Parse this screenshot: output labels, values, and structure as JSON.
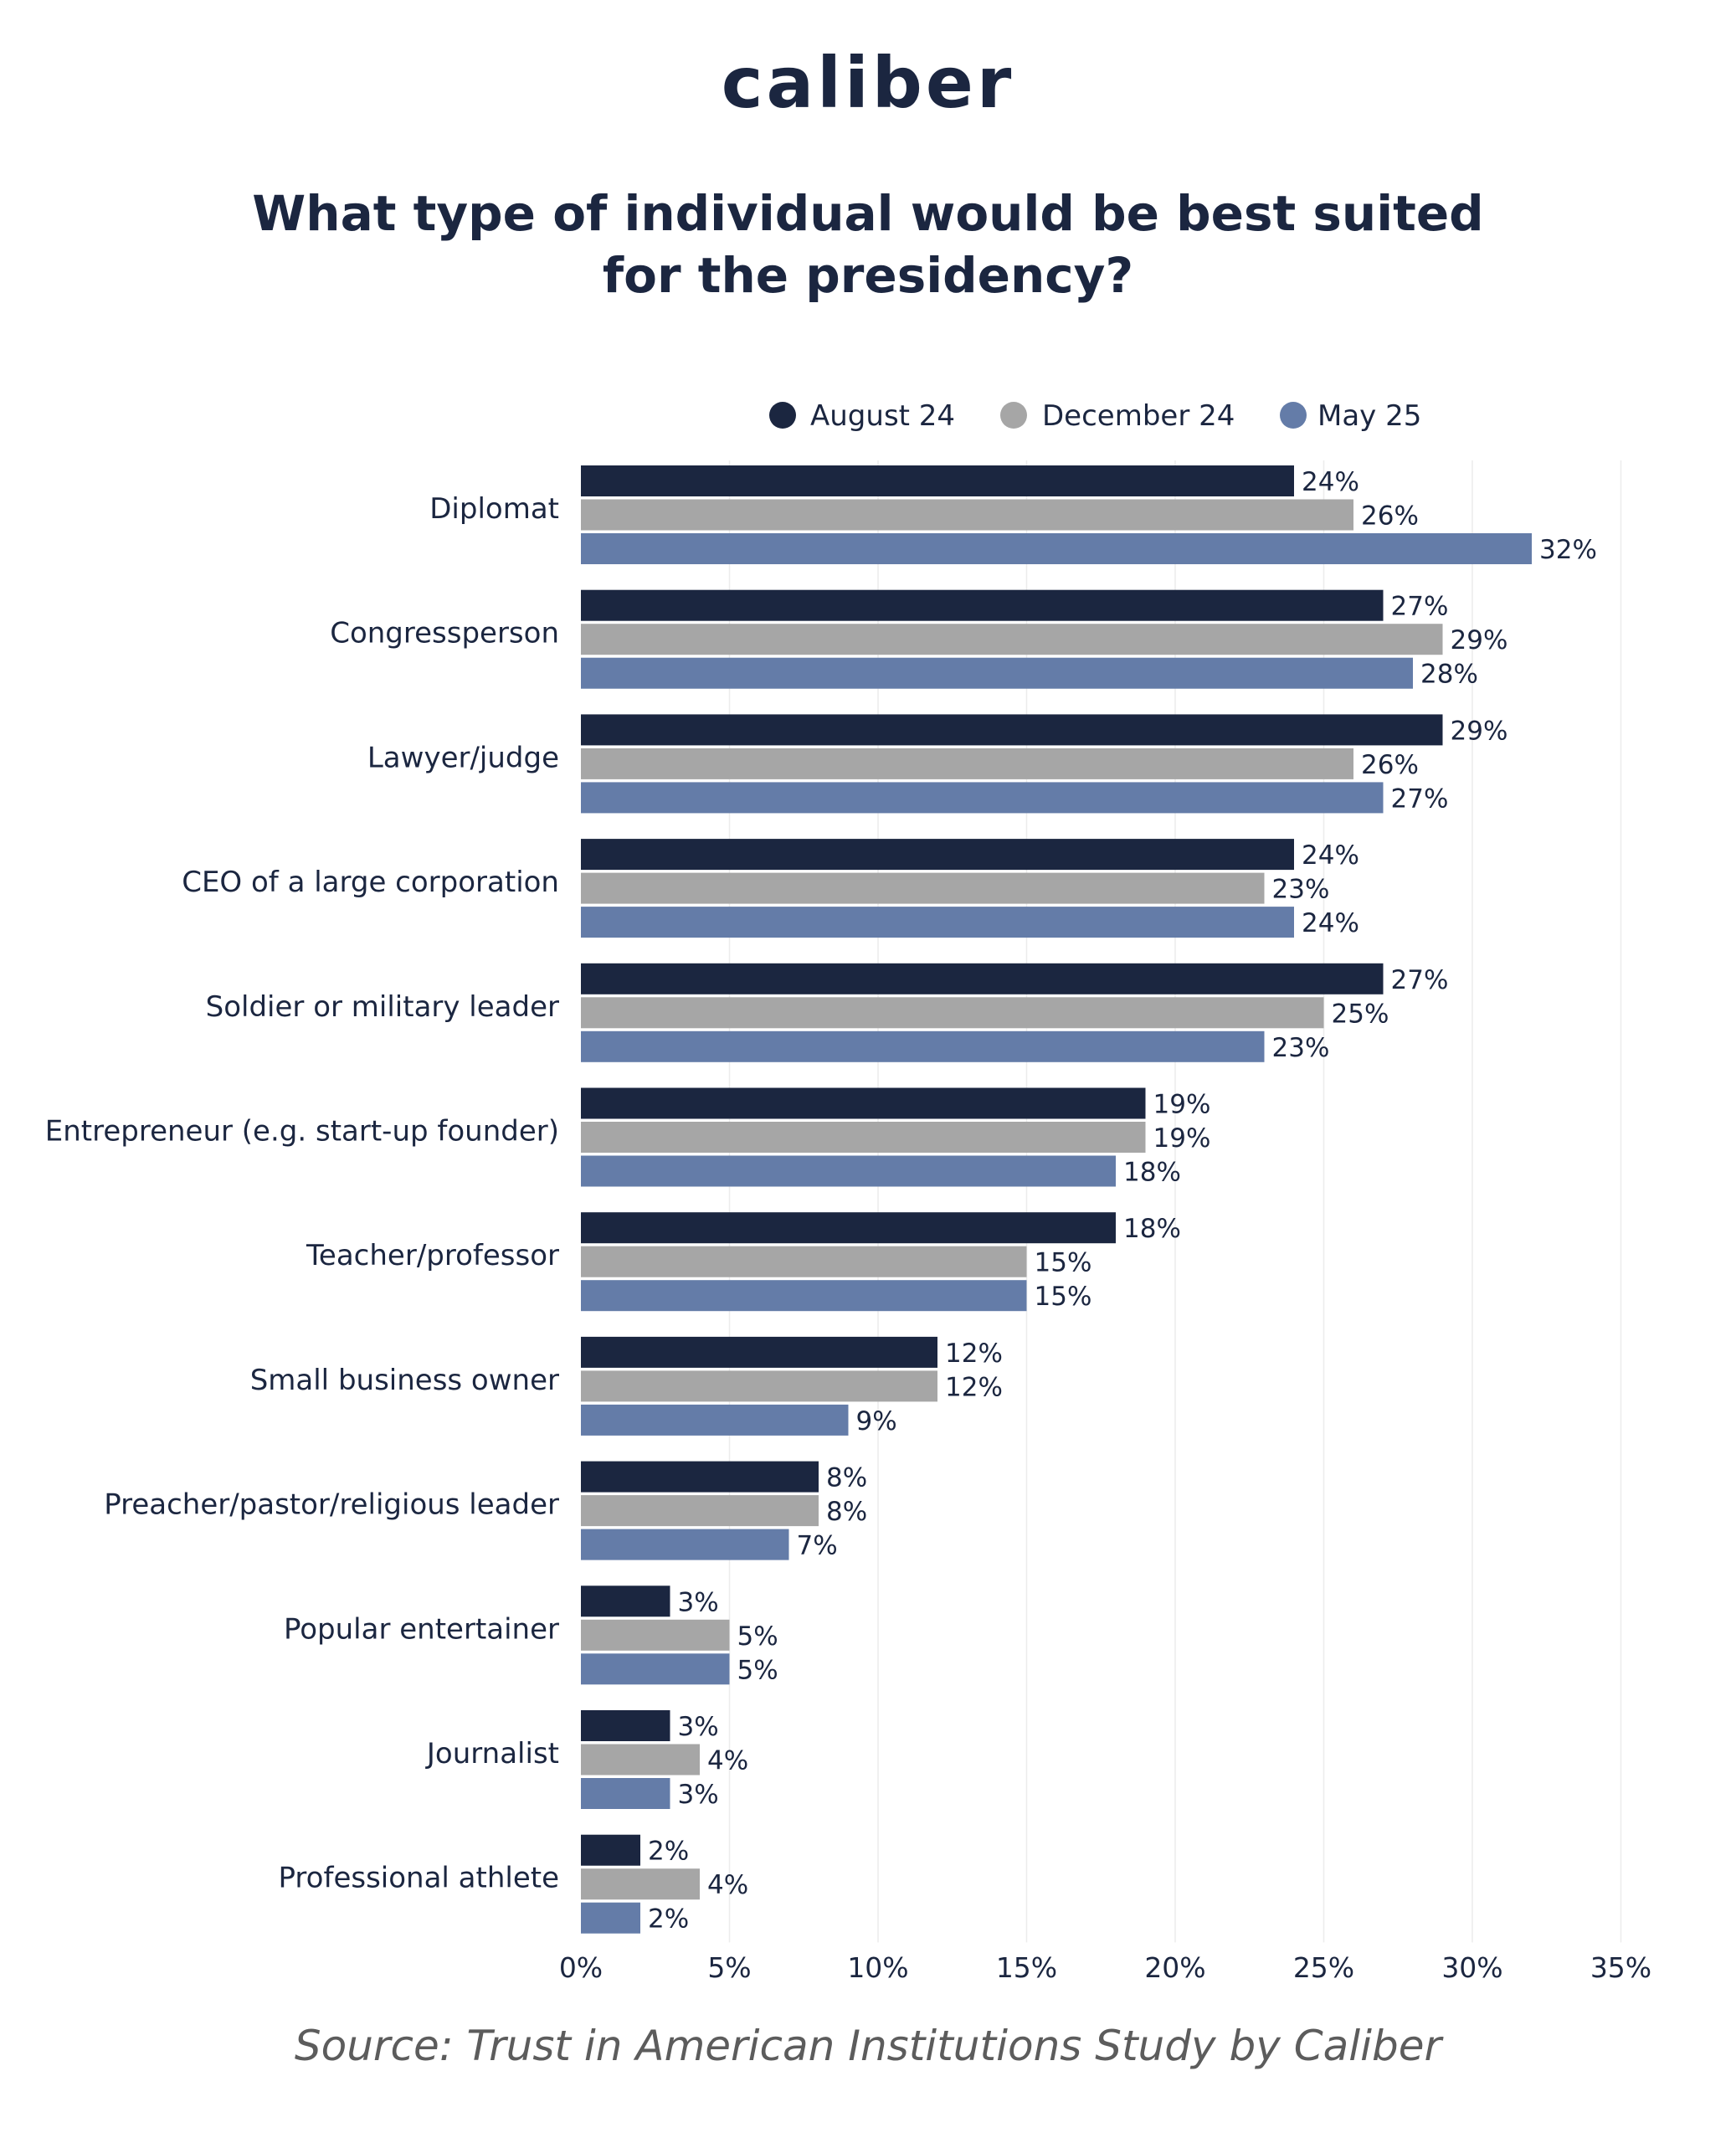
{
  "logo": "caliber",
  "source": "Source: Trust in American Institutions Study by Caliber",
  "chart_data": {
    "type": "bar",
    "orientation": "horizontal",
    "title": "What type of individual would be best suited for the presidency?",
    "title_lines": [
      "What type of individual would be best suited",
      "for the presidency?"
    ],
    "categories": [
      "Diplomat",
      "Congressperson",
      "Lawyer/judge",
      "CEO of a large corporation",
      "Soldier or military leader",
      "Entrepreneur (e.g. start-up founder)",
      "Teacher/professor",
      "Small business owner",
      "Preacher/pastor/religious leader",
      "Popular entertainer",
      "Journalist",
      "Professional athlete"
    ],
    "series": [
      {
        "name": "August 24",
        "color": "#1b2640",
        "values": [
          24,
          27,
          29,
          24,
          27,
          19,
          18,
          12,
          8,
          3,
          3,
          2
        ]
      },
      {
        "name": "December 24",
        "color": "#a6a6a6",
        "values": [
          26,
          29,
          26,
          23,
          25,
          19,
          15,
          12,
          8,
          5,
          4,
          4
        ]
      },
      {
        "name": "May 25",
        "color": "#647ca8",
        "values": [
          32,
          28,
          27,
          24,
          23,
          18,
          15,
          9,
          7,
          5,
          3,
          2
        ]
      }
    ],
    "value_suffix": "%",
    "xlim": [
      0,
      35
    ],
    "xticks": [
      0,
      5,
      10,
      15,
      20,
      25,
      30,
      35
    ],
    "xtick_labels": [
      "0%",
      "5%",
      "10%",
      "15%",
      "20%",
      "25%",
      "30%",
      "35%"
    ],
    "grid": true,
    "legend_position": "top"
  }
}
